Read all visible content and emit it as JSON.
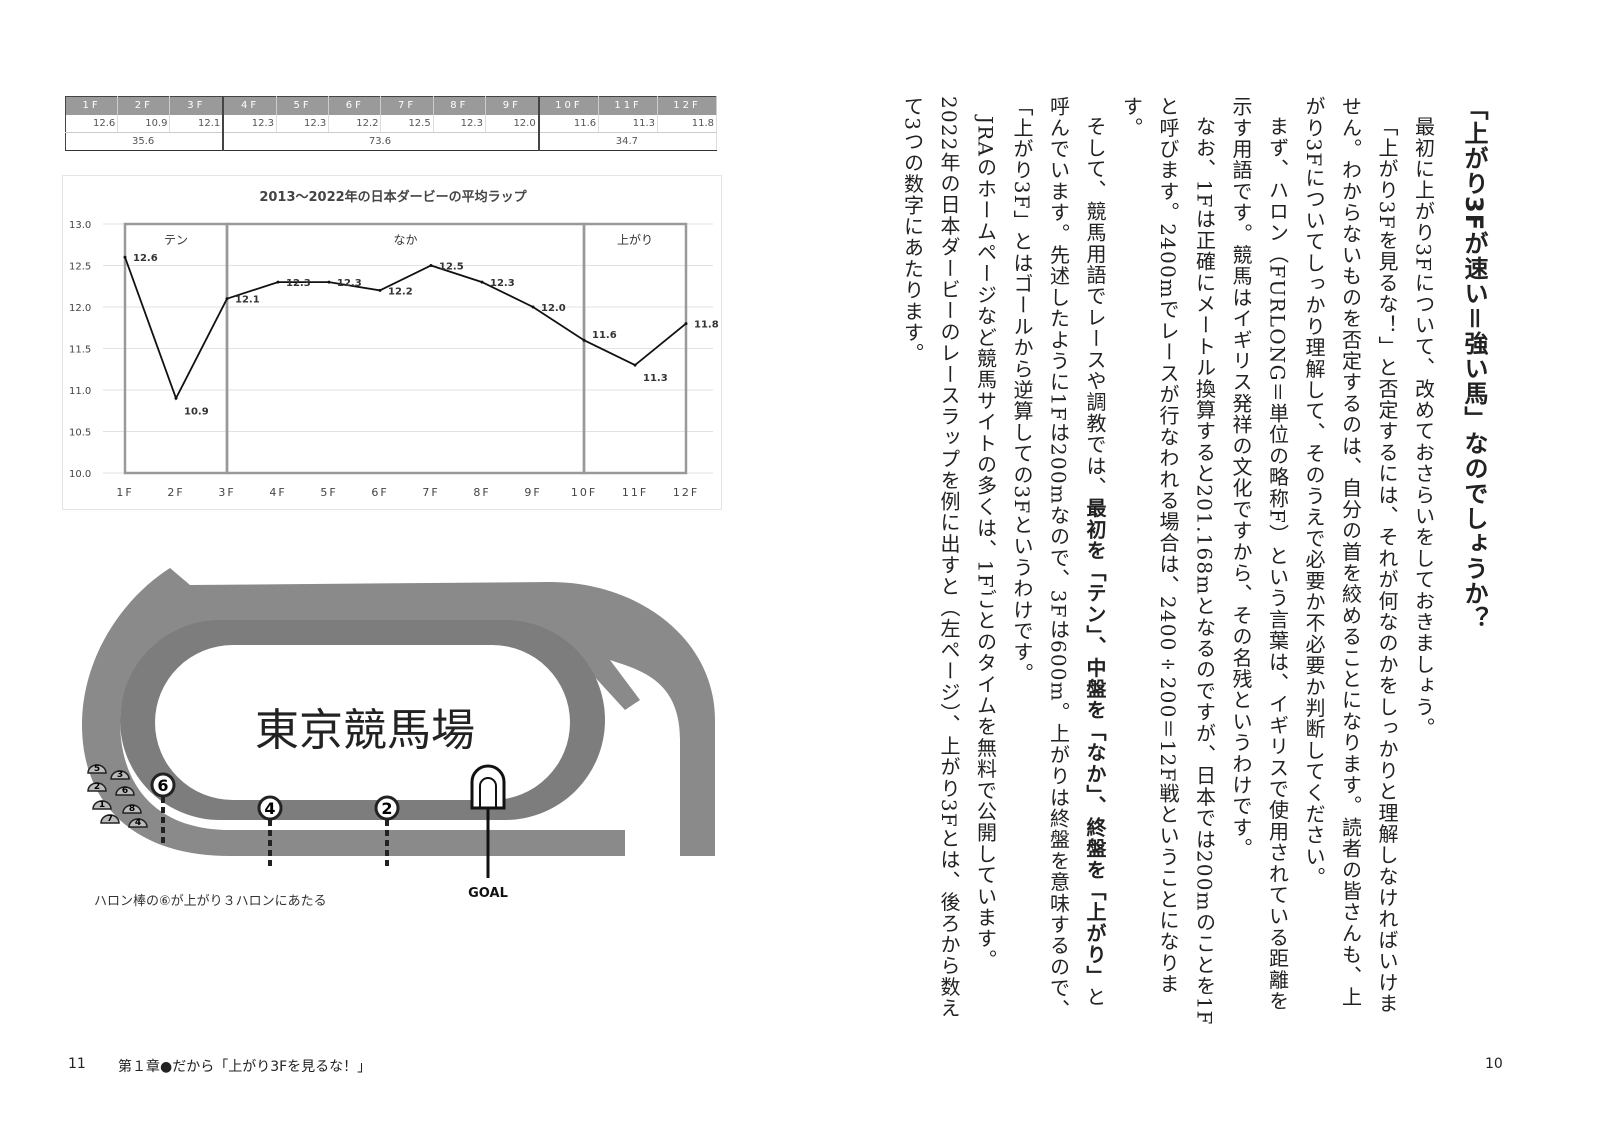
{
  "table": {
    "headers": [
      "1F",
      "2F",
      "3F",
      "4F",
      "5F",
      "6F",
      "7F",
      "8F",
      "9F",
      "10F",
      "11F",
      "12F"
    ],
    "laps": [
      "12.6",
      "10.9",
      "12.1",
      "12.3",
      "12.3",
      "12.2",
      "12.5",
      "12.3",
      "12.0",
      "11.6",
      "11.3",
      "11.8"
    ],
    "sums": [
      "35.6",
      "73.6",
      "34.7"
    ]
  },
  "chart_data": {
    "type": "line",
    "title": "2013〜2022年の日本ダービーの平均ラップ",
    "categories": [
      "1F",
      "2F",
      "3F",
      "4F",
      "5F",
      "6F",
      "7F",
      "8F",
      "9F",
      "10F",
      "11F",
      "12F"
    ],
    "values": [
      12.6,
      10.9,
      12.1,
      12.3,
      12.3,
      12.2,
      12.5,
      12.3,
      12.0,
      11.6,
      11.3,
      11.8
    ],
    "ylim": [
      10.0,
      13.0
    ],
    "yticks": [
      "10.0",
      "10.5",
      "11.0",
      "11.5",
      "12.0",
      "12.5",
      "13.0"
    ],
    "grid": true,
    "sections": [
      {
        "label": "テン",
        "from": "1F",
        "to": "3F"
      },
      {
        "label": "なか",
        "from": "3F",
        "to": "10F"
      },
      {
        "label": "上がり",
        "from": "10F",
        "to": "12F"
      }
    ],
    "line_color": "#111111",
    "section_color": "#999999"
  },
  "track": {
    "name": "東京競馬場",
    "goal": "GOAL",
    "poles": [
      "6",
      "4",
      "2"
    ],
    "gates": [
      "5",
      "3",
      "2",
      "6",
      "1",
      "8",
      "7",
      "4"
    ],
    "caption": "ハロン棒の⑥が上がり３ハロンにあたる",
    "color": "#8a8a8a"
  },
  "article": {
    "title": "「上がり3Fが速い＝強い馬」なのでしょうか？",
    "p1": "最初に上がり3Fについて、改めておさらいをしておきましょう。",
    "p2": "「上がり3Fを見るな！」と否定するには、それが何なのかをしっかりと理解しなければいけません。わからないものを否定するのは、自分の首を絞めることになります。読者の皆さんも、上がり3Fについてしっかり理解して、そのうえで必要か不必要か判断してください。",
    "p3": "まず、ハロン（FURLONG＝単位の略称F）という言葉は、イギリスで使用されている距離を示す用語です。競馬はイギリス発祥の文化ですから、その名残というわけです。",
    "p4": "なお、1Fは正確にメートル換算すると201.168mとなるのですが、日本では200mのことを1Fと呼びます。2400mでレースが行なわれる場合は、2400÷200＝12F戦ということになります。",
    "p5a": "そして、競馬用語でレースや調教では、",
    "p5b": "最初を「テン」、中盤を「なか」、終盤を「上がり」",
    "p5c": "と呼んでいます。先述したように1Fは200mなので、3Fは600m。上がりは終盤を意味するので、「上がり3F」とはゴールから逆算しての3Fというわけです。",
    "p6": "JRAのホームページなど競馬サイトの多くは、1Fごとのタイムを無料で公開しています。2022年の日本ダービーのレースラップを例に出すと（左ページ）、上がり3Fとは、後ろから数えて3つの数字にあたります。"
  },
  "footer": {
    "left_page": "11",
    "chapter": "第１章●だから「上がり3Fを見るな！」",
    "right_page": "10"
  }
}
